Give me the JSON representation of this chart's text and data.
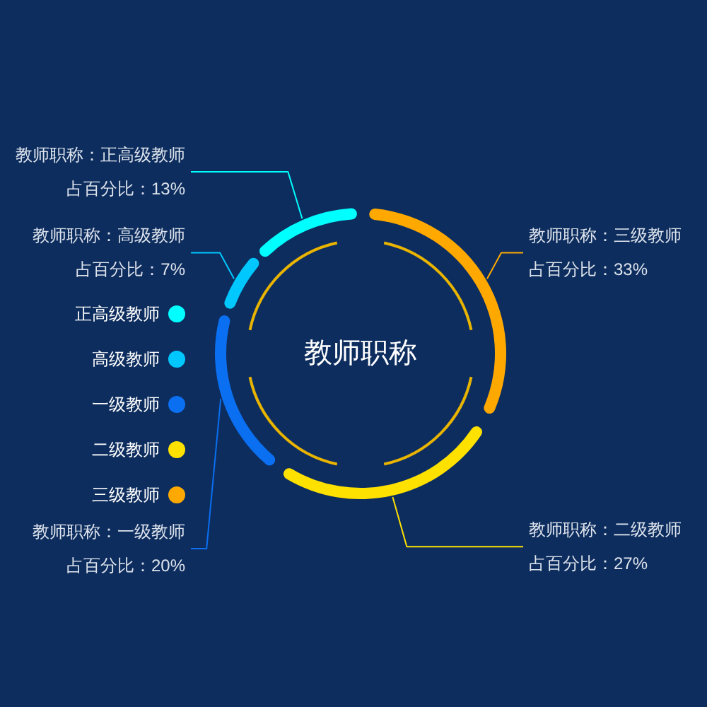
{
  "chart_data": {
    "type": "donut",
    "title": "教师职称",
    "categories": [
      "正高级教师",
      "高级教师",
      "一级教师",
      "二级教师",
      "三级教师"
    ],
    "values": [
      13,
      7,
      20,
      27,
      33
    ],
    "colors": [
      "#00ffff",
      "#00c8ff",
      "#0a6ff0",
      "#ffe100",
      "#ffa900"
    ],
    "value_labels": [
      "占百分比：13%",
      "占百分比：7%",
      "占百分比：20%",
      "占百分比：27%",
      "占百分比：33%"
    ],
    "annotations": [
      "教师职称：正高级教师",
      "教师职称：高级教师",
      "教师职称：一级教师",
      "教师职称：二级教师",
      "教师职称：三级教师"
    ],
    "legend": "left"
  }
}
